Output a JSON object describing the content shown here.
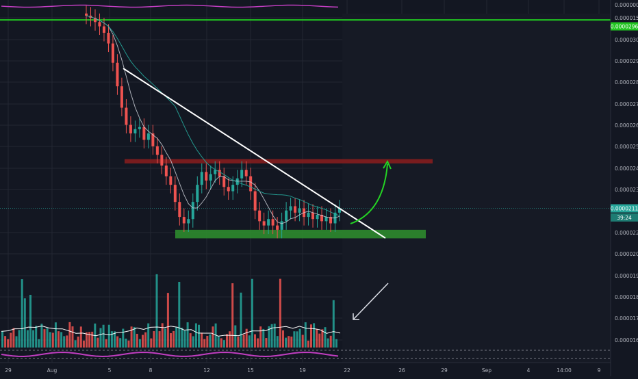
{
  "colors": {
    "background": "#131722",
    "grid": "#232733",
    "up": "#26a69a",
    "down": "#ef5350",
    "axis_text": "#b2b5be",
    "price_line": "#21c521",
    "resistance_zone": "#8b1d1d",
    "support_zone": "#2e8b2e",
    "trendline": "#ffffff",
    "arrow": "#24d324",
    "ma": "#26a69a",
    "oscillator": "#c13ec1"
  },
  "chart_data": {
    "type": "candlestick",
    "x_ticks": [
      "29",
      "Aug",
      "5",
      "8",
      "12",
      "15",
      "19",
      "22",
      "26",
      "29",
      "Sep",
      "4",
      "14:00",
      "9"
    ],
    "y_ticks": [
      "0.0000300",
      "0.0000290",
      "0.0000280",
      "0.0000270",
      "0.0000260",
      "0.0000250",
      "0.0000240",
      "0.0000230",
      "0.0000220",
      "0.0000200",
      "0.0000190",
      "0.0000180",
      "0.0000170",
      "0.0000160",
      "0.0000150"
    ],
    "top_tick": "0.0000000",
    "ylim": [
      1.48e-05,
      3.08e-05
    ],
    "price_labels": [
      {
        "label": "0.0000211",
        "value": 2.11e-05
      },
      {
        "label": "39:24",
        "value": 2.09e-05
      },
      {
        "label": "0.0000296",
        "value": 2.96e-05
      }
    ],
    "price_line": 2.99e-05,
    "current_price": 2.11e-05,
    "candle_closes": [
      3.01e-05,
      3e-05,
      2.98e-05,
      2.96e-05,
      2.93e-05,
      2.88e-05,
      2.79e-05,
      2.68e-05,
      2.58e-05,
      2.5e-05,
      2.46e-05,
      2.48e-05,
      2.49e-05,
      2.43e-05,
      2.46e-05,
      2.4e-05,
      2.36e-05,
      2.31e-05,
      2.26e-05,
      2.22e-05,
      2.14e-05,
      2.07e-05,
      2.04e-05,
      2.06e-05,
      2.14e-05,
      2.22e-05,
      2.28e-05,
      2.24e-05,
      2.27e-05,
      2.29e-05,
      2.26e-05,
      2.21e-05,
      2.19e-05,
      2.22e-05,
      2.25e-05,
      2.29e-05,
      2.26e-05,
      2.19e-05,
      2.1e-05,
      2.05e-05,
      2.03e-05,
      2.06e-05,
      2.03e-05,
      2.01e-05,
      2.05e-05,
      2.1e-05,
      2.12e-05,
      2.09e-05,
      2.11e-05,
      2.07e-05,
      2.09e-05,
      2.06e-05,
      2.08e-05,
      2.05e-05,
      2.07e-05,
      2.04e-05,
      2.09e-05,
      2.11e-05
    ],
    "annotations": [
      {
        "kind": "resistance-zone",
        "from": 2.32e-05,
        "to": 2.34e-05
      },
      {
        "kind": "support-zone",
        "from": 1.97e-05,
        "to": 2.01e-05
      },
      {
        "kind": "descending-trendline"
      },
      {
        "kind": "curved-arrow-up"
      },
      {
        "kind": "volume-arrow"
      }
    ],
    "panels": [
      "price",
      "volume",
      "oscillator"
    ]
  }
}
